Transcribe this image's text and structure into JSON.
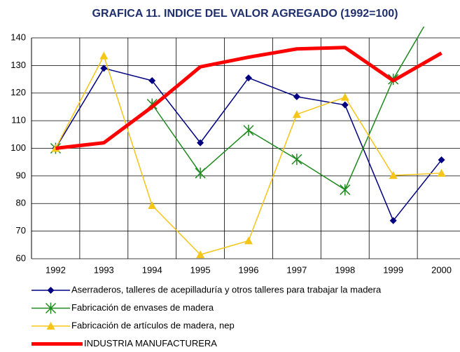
{
  "chart_data": {
    "type": "line",
    "title": "GRAFICA 11. INDICE DEL VALOR AGREGADO (1992=100)",
    "categories": [
      "1992",
      "1993",
      "1994",
      "1995",
      "1996",
      "1997",
      "1998",
      "1999",
      "2000"
    ],
    "series": [
      {
        "name": "Aserraderos, talleres de acepilladuría y otros talleres para trabajar la madera",
        "color": "#000080",
        "marker": "diamond",
        "width": 1.5,
        "values": [
          100,
          129,
          124.5,
          102,
          125.5,
          118.7,
          115.7,
          73.8,
          95.8
        ]
      },
      {
        "name": "Fabricación de envases de madera",
        "color": "#1e8a1e",
        "marker": "star",
        "width": 1.5,
        "values": [
          100,
          null,
          116,
          91,
          106.5,
          96,
          85,
          125,
          155
        ]
      },
      {
        "name": "Fabricación de artículos de madera, nep",
        "color": "#f5c518",
        "marker": "triangle",
        "width": 1.5,
        "values": [
          100,
          133.5,
          79.3,
          61.5,
          66.5,
          112.3,
          118.5,
          90.2,
          91
        ]
      },
      {
        "name": "INDUSTRIA MANUFACTURERA",
        "color": "#ff0000",
        "marker": "none",
        "width": 5,
        "values": [
          100,
          102,
          115,
          129.5,
          133,
          136,
          136.5,
          124.5,
          134.5
        ]
      }
    ],
    "ylim": [
      60,
      140
    ],
    "yticks": [
      60,
      70,
      80,
      90,
      100,
      110,
      120,
      130,
      140
    ],
    "grid": true
  }
}
